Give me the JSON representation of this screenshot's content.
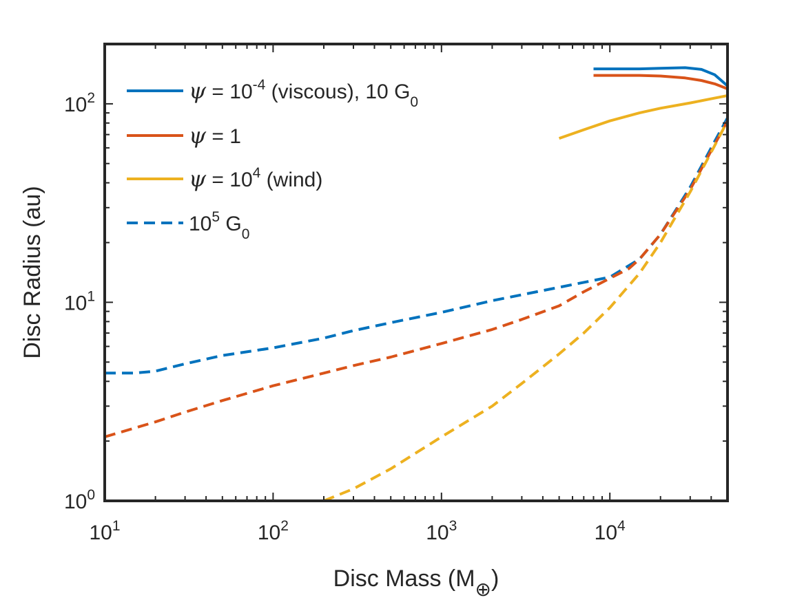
{
  "chart_data": {
    "type": "line",
    "xscale": "log",
    "yscale": "log",
    "xlim": [
      10,
      50000
    ],
    "ylim": [
      1,
      200
    ],
    "xlabel": "Disc Mass (M",
    "xlabel_subscript": "⊕",
    "xlabel_suffix": ")",
    "ylabel": "Disc Radius (au)",
    "grid": false,
    "legend_position": "top-left",
    "x_ticks": [
      {
        "value": 10,
        "base": "10",
        "exp": "1"
      },
      {
        "value": 100,
        "base": "10",
        "exp": "2"
      },
      {
        "value": 1000,
        "base": "10",
        "exp": "3"
      },
      {
        "value": 10000,
        "base": "10",
        "exp": "4"
      }
    ],
    "y_ticks": [
      {
        "value": 1,
        "base": "10",
        "exp": "0"
      },
      {
        "value": 10,
        "base": "10",
        "exp": "1"
      },
      {
        "value": 100,
        "base": "10",
        "exp": "2"
      }
    ],
    "colors": {
      "viscous": "#0072BD",
      "psi1": "#D95319",
      "wind": "#EDB120",
      "axes": "#262626"
    },
    "legend": [
      {
        "symbol": "ψ",
        "text_pre": " = 10",
        "sup": "-4",
        "text_post": " (viscous), 10 G",
        "sub": "0",
        "color_key": "viscous",
        "dashed": false
      },
      {
        "symbol": "ψ",
        "text_pre": " = 1",
        "sup": "",
        "text_post": "",
        "sub": "",
        "color_key": "psi1",
        "dashed": false
      },
      {
        "symbol": "ψ",
        "text_pre": " = 10",
        "sup": "4",
        "text_post": " (wind)",
        "sub": "",
        "color_key": "wind",
        "dashed": false
      },
      {
        "symbol": "",
        "text_pre": "10",
        "sup": "5",
        "text_post": " G",
        "sub": "0",
        "color_key": "viscous",
        "dashed": true
      }
    ],
    "series": [
      {
        "name": "ψ = 10^-4 (viscous), 10 G0",
        "color_key": "viscous",
        "dashed": false,
        "x": [
          8000,
          10000,
          15000,
          20000,
          28000,
          35000,
          42000,
          50000
        ],
        "y": [
          150,
          150,
          150,
          151,
          152,
          149,
          140,
          123
        ]
      },
      {
        "name": "ψ = 1, 10 G0",
        "color_key": "psi1",
        "dashed": false,
        "x": [
          8000,
          10000,
          15000,
          20000,
          28000,
          35000,
          42000,
          50000
        ],
        "y": [
          139,
          139,
          139,
          138,
          135,
          131,
          126,
          119
        ]
      },
      {
        "name": "ψ = 10^4 (wind), 10 G0",
        "color_key": "wind",
        "dashed": false,
        "x": [
          5000,
          7000,
          10000,
          15000,
          20000,
          30000,
          40000,
          50000
        ],
        "y": [
          67,
          74,
          82,
          90,
          95,
          101,
          106,
          110
        ]
      },
      {
        "name": "ψ = 10^-4, 10^5 G0",
        "color_key": "viscous",
        "dashed": true,
        "x": [
          10,
          15,
          20,
          30,
          50,
          100,
          200,
          300,
          500,
          1000,
          2000,
          5000,
          10000,
          15000,
          20000,
          30000,
          40000,
          50000
        ],
        "y": [
          4.4,
          4.4,
          4.5,
          4.9,
          5.4,
          5.9,
          6.6,
          7.2,
          7.9,
          8.9,
          10.2,
          11.9,
          13.4,
          16.5,
          22,
          38,
          60,
          85
        ]
      },
      {
        "name": "ψ = 1, 10^5 G0",
        "color_key": "psi1",
        "dashed": true,
        "x": [
          10,
          20,
          30,
          50,
          100,
          200,
          300,
          500,
          1000,
          2000,
          3000,
          5000,
          7000,
          10000,
          13000,
          15000,
          20000,
          30000,
          40000,
          50000
        ],
        "y": [
          2.1,
          2.5,
          2.8,
          3.2,
          3.8,
          4.4,
          4.8,
          5.3,
          6.2,
          7.3,
          8.2,
          9.6,
          11.3,
          13.2,
          14.8,
          16.5,
          22,
          37,
          58,
          82
        ]
      },
      {
        "name": "ψ = 10^4, 10^5 G0",
        "color_key": "wind",
        "dashed": true,
        "x": [
          200,
          300,
          500,
          1000,
          2000,
          3000,
          5000,
          7000,
          10000,
          15000,
          20000,
          30000,
          40000,
          50000
        ],
        "y": [
          1.0,
          1.15,
          1.45,
          2.1,
          3.0,
          3.9,
          5.5,
          7.0,
          9.4,
          14.0,
          20,
          36,
          57,
          82
        ]
      }
    ]
  }
}
